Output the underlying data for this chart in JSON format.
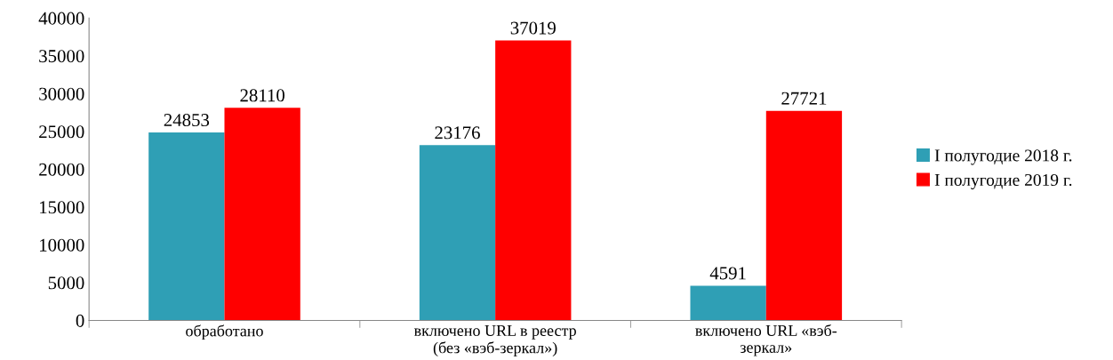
{
  "chart_data": {
    "type": "bar",
    "categories": [
      "обработано",
      "включено URL в реестр\n(без «вэб-зеркал»)",
      "включено URL «вэб-\nзеркал»"
    ],
    "series": [
      {
        "name": "I полугодие 2018 г.",
        "color": "#2f9fb5",
        "values": [
          24853,
          23176,
          4591
        ]
      },
      {
        "name": "I полугодие 2019 г.",
        "color": "#ff0000",
        "values": [
          28110,
          37019,
          27721
        ]
      }
    ],
    "ylim": [
      0,
      40000
    ],
    "yticks": [
      0,
      5000,
      10000,
      15000,
      20000,
      25000,
      30000,
      35000,
      40000
    ],
    "data_labels": true,
    "legend": "right",
    "grid": false
  }
}
